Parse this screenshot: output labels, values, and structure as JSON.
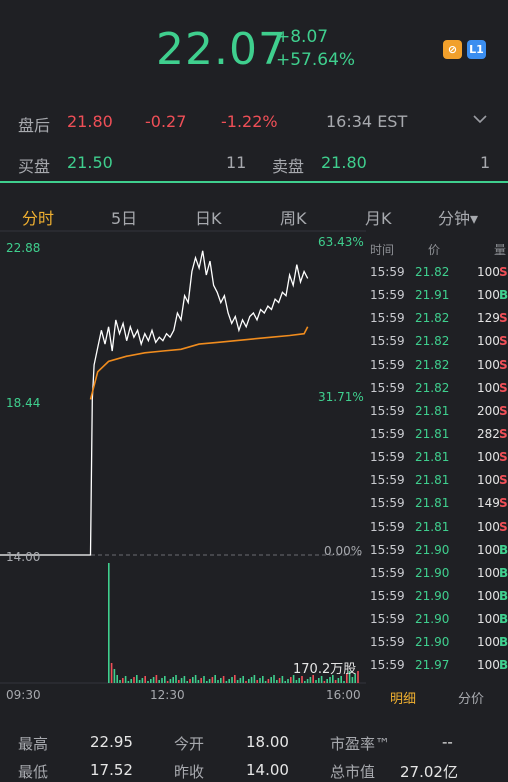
{
  "quote": {
    "price": "22.07",
    "change": "+8.07",
    "change_pct": "+57.64%"
  },
  "header_icons": [
    {
      "name": "no-symbol-icon",
      "glyph": "⊘"
    },
    {
      "name": "level1-icon",
      "glyph": "L1"
    }
  ],
  "after_hours": {
    "label": "盘后",
    "price": "21.80",
    "change": "-0.27",
    "change_pct": "-1.22%",
    "time": "16:34 EST"
  },
  "bid_ask": {
    "bid_label": "买盘",
    "bid_price": "21.50",
    "bid_vol": "11",
    "ask_label": "卖盘",
    "ask_price": "21.80",
    "ask_vol": "1"
  },
  "tabs": [
    "分时",
    "5日",
    "日K",
    "周K",
    "月K",
    "分钟▾"
  ],
  "chart_data": {
    "type": "line",
    "y_top": "22.88",
    "y_mid": "18.44",
    "y_base": "14.00",
    "pct_top": "63.43%",
    "pct_mid": "31.71%",
    "pct_base": "0.00%",
    "ylim": [
      14.0,
      22.88
    ],
    "x_ticks": [
      "09:30",
      "12:30",
      "16:00"
    ],
    "volume_label": "170.2万股",
    "price": [
      [
        0,
        14
      ],
      [
        0.2,
        14
      ],
      [
        0.25,
        14
      ],
      [
        0.255,
        18.5
      ],
      [
        0.26,
        19.5
      ],
      [
        0.27,
        20
      ],
      [
        0.28,
        20.5
      ],
      [
        0.29,
        20.1
      ],
      [
        0.3,
        20.6
      ],
      [
        0.31,
        19.9
      ],
      [
        0.32,
        20.8
      ],
      [
        0.33,
        20.4
      ],
      [
        0.34,
        20.7
      ],
      [
        0.35,
        20.2
      ],
      [
        0.36,
        20.6
      ],
      [
        0.37,
        20.3
      ],
      [
        0.38,
        20.5
      ],
      [
        0.39,
        20.1
      ],
      [
        0.4,
        20.4
      ],
      [
        0.41,
        20.2
      ],
      [
        0.42,
        20.5
      ],
      [
        0.43,
        20.15
      ],
      [
        0.44,
        20.3
      ],
      [
        0.45,
        20.2
      ],
      [
        0.46,
        20.4
      ],
      [
        0.47,
        20.3
      ],
      [
        0.48,
        20.5
      ],
      [
        0.49,
        21.0
      ],
      [
        0.5,
        20.8
      ],
      [
        0.51,
        21.5
      ],
      [
        0.52,
        21.3
      ],
      [
        0.53,
        22.2
      ],
      [
        0.54,
        22.6
      ],
      [
        0.55,
        22.3
      ],
      [
        0.56,
        22.8
      ],
      [
        0.57,
        22.1
      ],
      [
        0.58,
        22.5
      ],
      [
        0.59,
        21.8
      ],
      [
        0.6,
        21.6
      ],
      [
        0.61,
        21.3
      ],
      [
        0.62,
        21.5
      ],
      [
        0.63,
        21.0
      ],
      [
        0.64,
        20.7
      ],
      [
        0.65,
        20.9
      ],
      [
        0.66,
        20.5
      ],
      [
        0.67,
        20.8
      ],
      [
        0.68,
        20.6
      ],
      [
        0.69,
        20.9
      ],
      [
        0.7,
        21.0
      ],
      [
        0.71,
        20.8
      ],
      [
        0.72,
        21.1
      ],
      [
        0.73,
        21.0
      ],
      [
        0.74,
        21.2
      ],
      [
        0.75,
        21.1
      ],
      [
        0.76,
        21.4
      ],
      [
        0.77,
        21.3
      ],
      [
        0.78,
        21.6
      ],
      [
        0.79,
        21.5
      ],
      [
        0.8,
        22.1
      ],
      [
        0.81,
        21.8
      ],
      [
        0.82,
        22.4
      ],
      [
        0.83,
        21.9
      ],
      [
        0.84,
        22.2
      ],
      [
        0.85,
        22.0
      ]
    ],
    "avg": [
      [
        0.25,
        18.5
      ],
      [
        0.27,
        19.3
      ],
      [
        0.3,
        19.6
      ],
      [
        0.35,
        19.75
      ],
      [
        0.4,
        19.85
      ],
      [
        0.45,
        19.9
      ],
      [
        0.5,
        19.95
      ],
      [
        0.55,
        20.1
      ],
      [
        0.6,
        20.15
      ],
      [
        0.65,
        20.2
      ],
      [
        0.7,
        20.25
      ],
      [
        0.75,
        20.3
      ],
      [
        0.8,
        20.35
      ],
      [
        0.84,
        20.4
      ],
      [
        0.85,
        20.6
      ]
    ]
  },
  "ticks_header": {
    "time": "时间",
    "price": "价",
    "vol": "量"
  },
  "ticks": [
    {
      "time": "15:59",
      "price": "21.82",
      "vol": "100",
      "side": "S"
    },
    {
      "time": "15:59",
      "price": "21.91",
      "vol": "100",
      "side": "B"
    },
    {
      "time": "15:59",
      "price": "21.82",
      "vol": "129",
      "side": "S"
    },
    {
      "time": "15:59",
      "price": "21.82",
      "vol": "100",
      "side": "S"
    },
    {
      "time": "15:59",
      "price": "21.82",
      "vol": "100",
      "side": "S"
    },
    {
      "time": "15:59",
      "price": "21.82",
      "vol": "100",
      "side": "S"
    },
    {
      "time": "15:59",
      "price": "21.81",
      "vol": "200",
      "side": "S"
    },
    {
      "time": "15:59",
      "price": "21.81",
      "vol": "282",
      "side": "S"
    },
    {
      "time": "15:59",
      "price": "21.81",
      "vol": "100",
      "side": "S"
    },
    {
      "time": "15:59",
      "price": "21.81",
      "vol": "100",
      "side": "S"
    },
    {
      "time": "15:59",
      "price": "21.81",
      "vol": "149",
      "side": "S"
    },
    {
      "time": "15:59",
      "price": "21.81",
      "vol": "100",
      "side": "S"
    },
    {
      "time": "15:59",
      "price": "21.90",
      "vol": "100",
      "side": "B"
    },
    {
      "time": "15:59",
      "price": "21.90",
      "vol": "100",
      "side": "B"
    },
    {
      "time": "15:59",
      "price": "21.90",
      "vol": "100",
      "side": "B"
    },
    {
      "time": "15:59",
      "price": "21.90",
      "vol": "100",
      "side": "B"
    },
    {
      "time": "15:59",
      "price": "21.90",
      "vol": "100",
      "side": "B"
    },
    {
      "time": "15:59",
      "price": "21.97",
      "vol": "100",
      "side": "B"
    }
  ],
  "tick_tabs": {
    "detail": "明细",
    "split": "分价"
  },
  "stats": [
    {
      "label": "最高",
      "value": "22.95"
    },
    {
      "label": "今开",
      "value": "18.00"
    },
    {
      "label": "市盈率™",
      "value": "--"
    },
    {
      "label": "最低",
      "value": "17.52"
    },
    {
      "label": "昨收",
      "value": "14.00"
    },
    {
      "label": "总市值",
      "value": "27.02亿"
    }
  ]
}
